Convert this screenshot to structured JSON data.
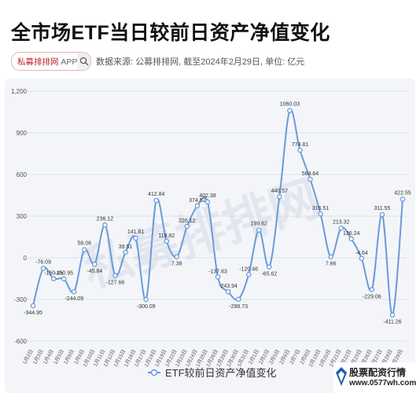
{
  "header": {
    "title": "全市场ETF当日较前日资产净值变化",
    "brand_name": "私募排排网",
    "brand_app": "APP",
    "source": "数据来源: 公募排排网, 截至2024年2月29日, 单位: 亿元"
  },
  "watermark": "私募排排网",
  "footer_logo": {
    "line1": "股票配资行情",
    "line2": "www.0577wh.com"
  },
  "chart_data": {
    "type": "line",
    "ylim": [
      -600,
      1200
    ],
    "yticks": [
      "-600",
      "-300",
      "0",
      "300",
      "600",
      "900",
      "1,200"
    ],
    "ytick_values": [
      -600,
      -300,
      0,
      300,
      600,
      900,
      1200
    ],
    "grid": true,
    "legend": "bottom-center",
    "line_color": "#6a9bd8",
    "categories": [
      "1月2日",
      "1月3日",
      "1月4日",
      "1月5日",
      "1月8日",
      "1月9日",
      "1月10日",
      "1月11日",
      "1月12日",
      "1月15日",
      "1月16日",
      "1月17日",
      "1月18日",
      "1月19日",
      "1月22日",
      "1月23日",
      "1月24日",
      "1月25日",
      "1月26日",
      "1月29日",
      "1月30日",
      "1月31日",
      "2月1日",
      "2月2日",
      "2月5日",
      "2月6日",
      "2月7日",
      "2月8日",
      "2月19日",
      "2月20日",
      "2月21日",
      "2月22日",
      "2月23日",
      "2月26日",
      "2月27日",
      "2月28日",
      "2月29日"
    ],
    "series": [
      {
        "name": "ETF较前日资产净值变化",
        "values": [
          -344.95,
          -76.09,
          -150.45,
          -150.95,
          -244.09,
          58.06,
          -45.84,
          236.12,
          -127.66,
          39.51,
          141.61,
          -300.09,
          412.84,
          119.82,
          7.38,
          226.12,
          374.52,
          402.38,
          -137.63,
          -243.94,
          -298.73,
          -120.46,
          199.62,
          -65.62,
          440.57,
          1060.03,
          774.81,
          564.64,
          316.51,
          7.66,
          213.32,
          136.24,
          -4.64,
          -229.06,
          311.55,
          -411.26,
          422.55
        ],
        "labels": [
          "-344.95",
          "-76.09",
          "-150.45",
          "-150.95",
          "-244.09",
          "58.06",
          "-45.84",
          "236.12",
          "-127.66",
          "39.51",
          "141.61",
          "-300.09",
          "412.84",
          "119.82",
          "7.38",
          "226.12",
          "374.52",
          "402.38",
          "-137.63",
          "-243.94",
          "-298.73",
          "-120.46",
          "199.62",
          "-65.62",
          "440.57",
          "1060.03",
          "774.81",
          "564.64",
          "316.51",
          "7.66",
          "213.32",
          "136.24",
          "-4.64",
          "-229.06",
          "311.55",
          "-411.26",
          "422.55"
        ]
      }
    ]
  }
}
